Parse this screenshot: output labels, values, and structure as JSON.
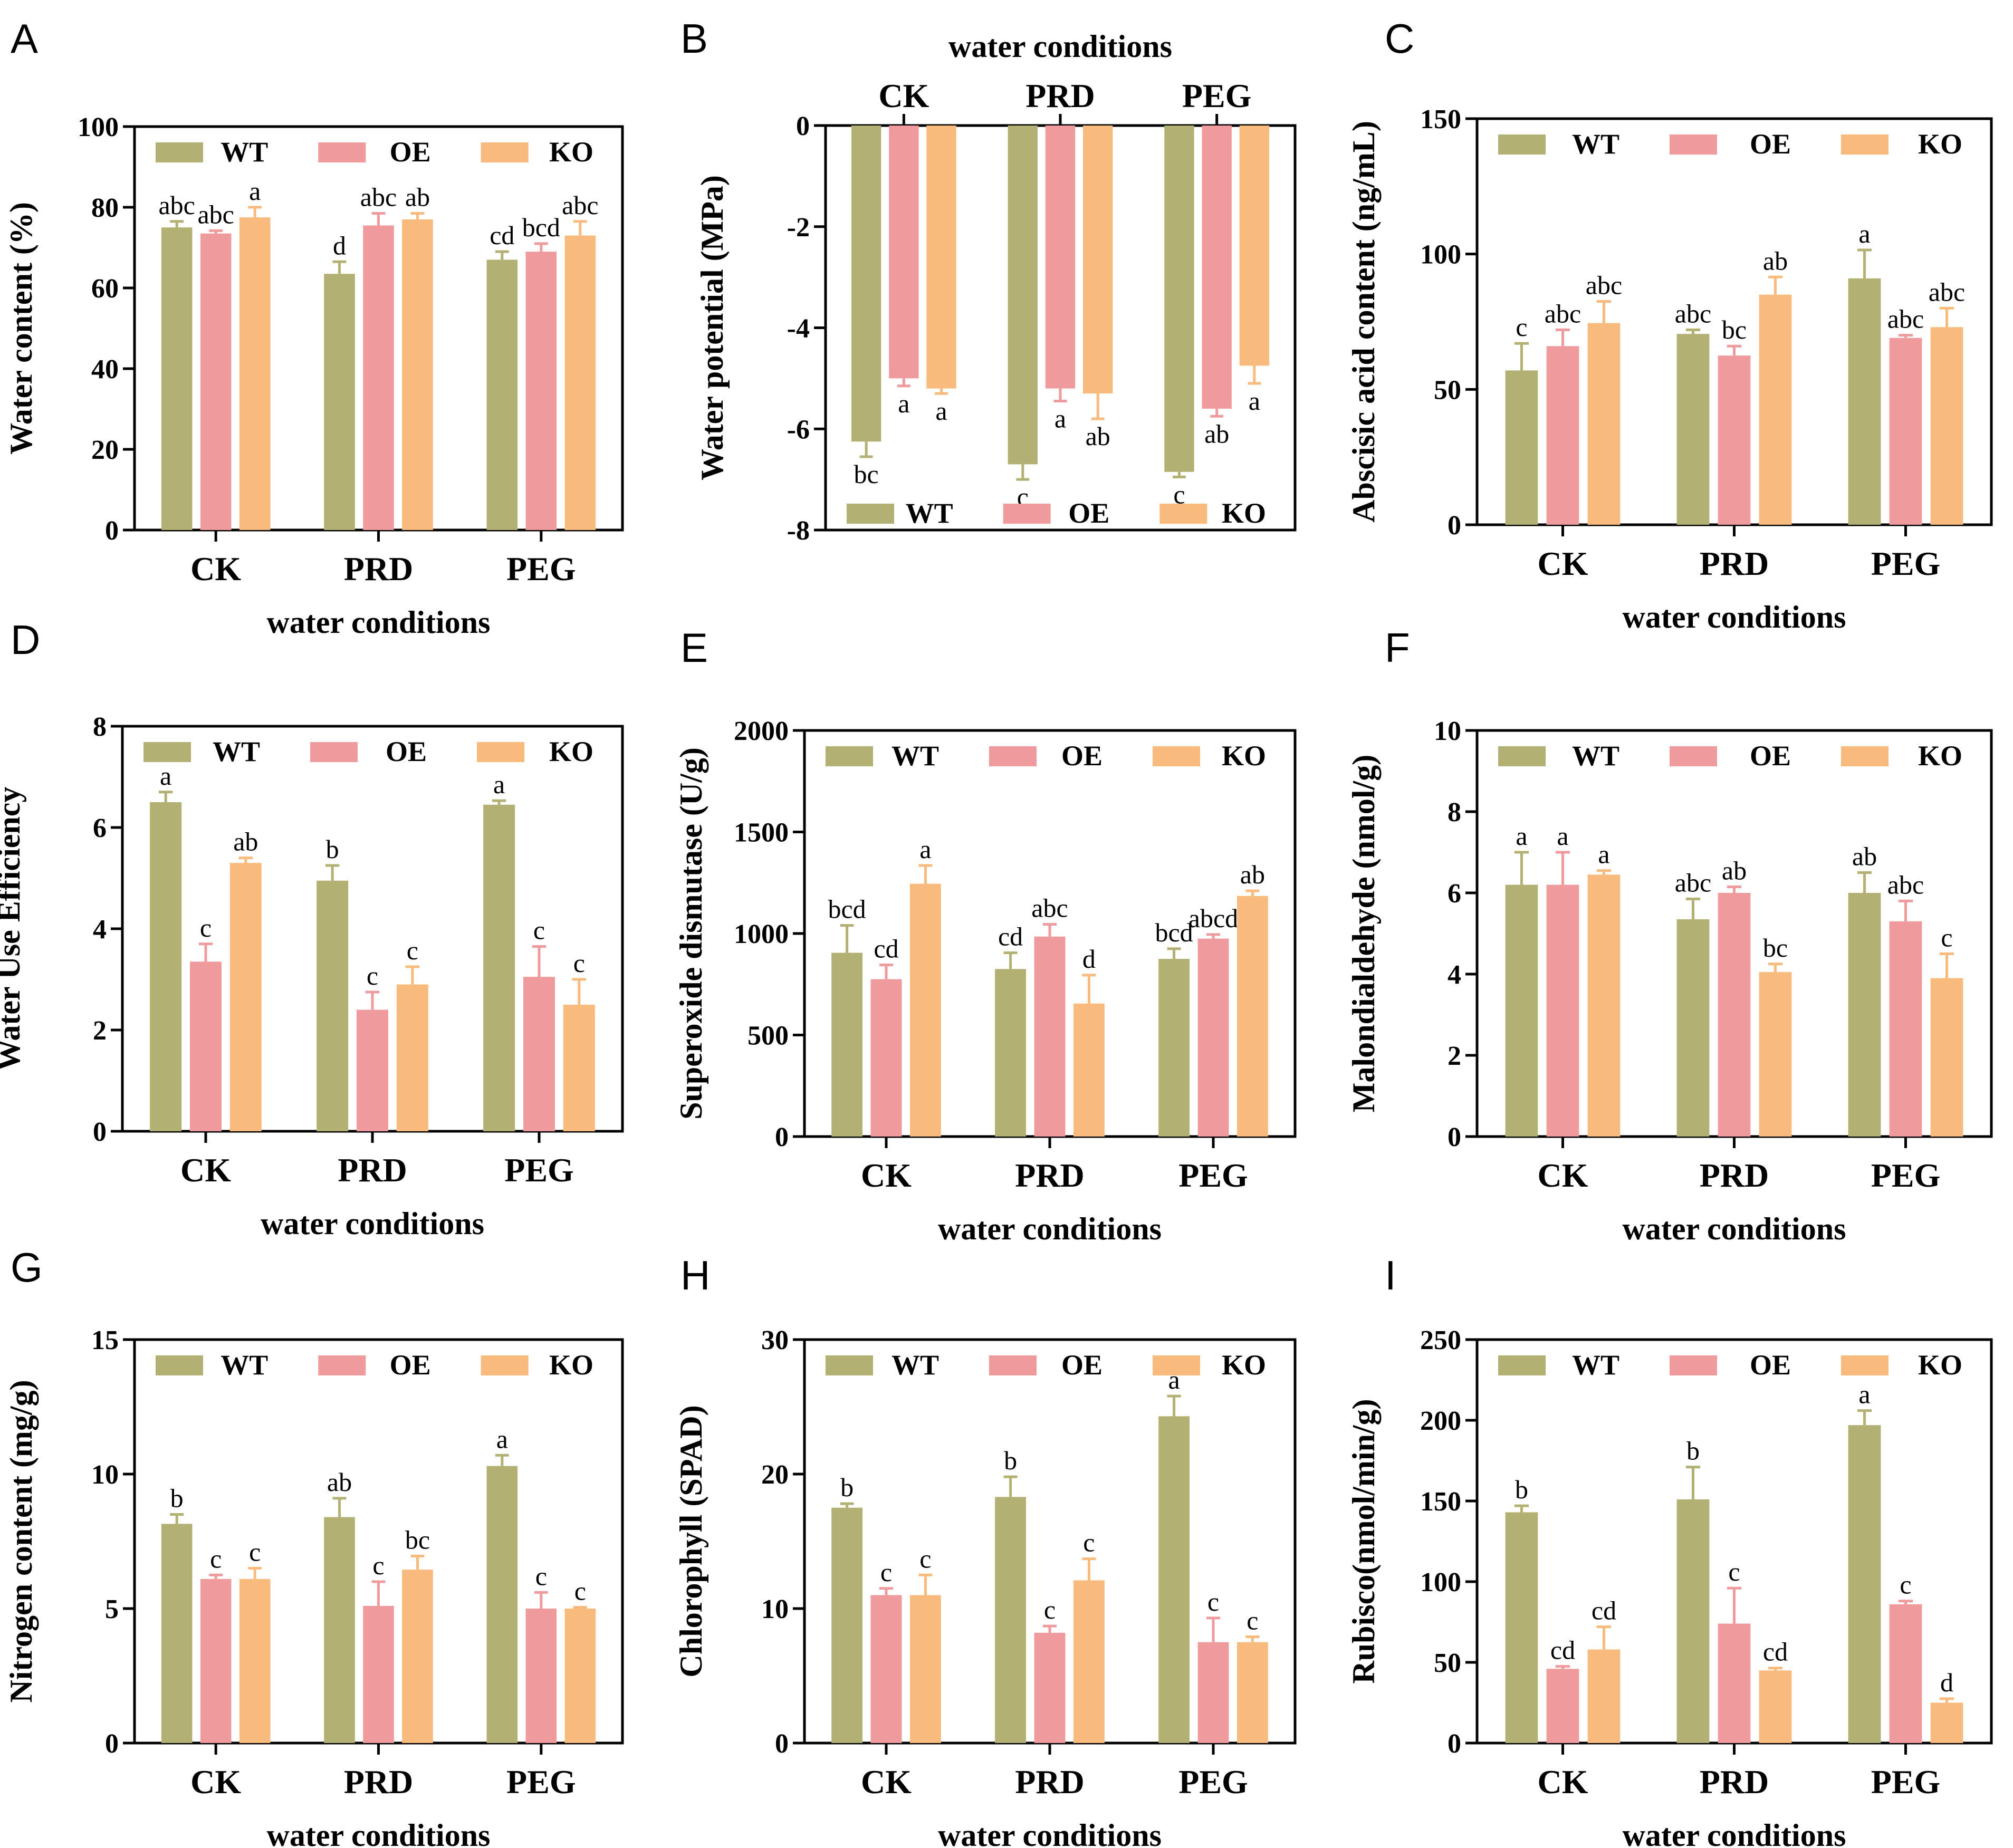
{
  "colors": {
    "WT": "#b3b073",
    "OE": "#ef9a9c",
    "KO": "#f8bb7d",
    "axis": "#000000"
  },
  "chart_data": [
    {
      "letter": "A",
      "type": "bar",
      "ylabel": "Water content (%)",
      "xlabel": "water conditions",
      "categories": [
        "CK",
        "PRD",
        "PEG"
      ],
      "ylim": [
        0,
        100
      ],
      "yticks": [
        0,
        20,
        40,
        60,
        80,
        100
      ],
      "ytick_labels": [
        "0",
        "20",
        "40",
        "60",
        "80",
        "100"
      ],
      "series": [
        {
          "name": "WT",
          "values": [
            75,
            63.5,
            67
          ],
          "errors": [
            1.5,
            3,
            2
          ],
          "labels": [
            "abc",
            "d",
            "cd"
          ]
        },
        {
          "name": "OE",
          "values": [
            73.5,
            75.5,
            69
          ],
          "errors": [
            0.7,
            3,
            2
          ],
          "labels": [
            "abc",
            "abc",
            "bcd"
          ]
        },
        {
          "name": "KO",
          "values": [
            77.5,
            77,
            73
          ],
          "errors": [
            2.5,
            1.5,
            3.5
          ],
          "labels": [
            "a",
            "ab",
            "abc"
          ]
        }
      ]
    },
    {
      "letter": "B",
      "type": "bar",
      "ylabel": "Water potential (MPa)",
      "xlabel": "water conditions",
      "categories": [
        "CK",
        "PRD",
        "PEG"
      ],
      "ylim": [
        -8,
        0
      ],
      "yticks": [
        0,
        -2,
        -4,
        -6,
        -8
      ],
      "ytick_labels": [
        "0",
        "-2",
        "-4",
        "-6",
        "-8"
      ],
      "series": [
        {
          "name": "WT",
          "values": [
            -6.25,
            -6.7,
            -6.85
          ],
          "errors": [
            0.3,
            0.3,
            0.1
          ],
          "labels": [
            "bc",
            "c",
            "c"
          ]
        },
        {
          "name": "OE",
          "values": [
            -5,
            -5.2,
            -5.6
          ],
          "errors": [
            0.15,
            0.25,
            0.15
          ],
          "labels": [
            "a",
            "a",
            "ab"
          ]
        },
        {
          "name": "KO",
          "values": [
            -5.2,
            -5.3,
            -4.75
          ],
          "errors": [
            0.1,
            0.5,
            0.35
          ],
          "labels": [
            "a",
            "ab",
            "a"
          ]
        }
      ]
    },
    {
      "letter": "C",
      "type": "bar",
      "ylabel": "Abscisic acid content (ng/mL)",
      "xlabel": "water conditions",
      "categories": [
        "CK",
        "PRD",
        "PEG"
      ],
      "ylim": [
        0,
        150
      ],
      "yticks": [
        0,
        50,
        100,
        150
      ],
      "ytick_labels": [
        "0",
        "50",
        "100",
        "150"
      ],
      "series": [
        {
          "name": "WT",
          "values": [
            57,
            70.5,
            91
          ],
          "errors": [
            10,
            1.5,
            10.5
          ],
          "labels": [
            "c",
            "abc",
            "a"
          ]
        },
        {
          "name": "OE",
          "values": [
            66,
            62.5,
            69
          ],
          "errors": [
            6,
            3.5,
            1
          ],
          "labels": [
            "abc",
            "bc",
            "abc"
          ]
        },
        {
          "name": "KO",
          "values": [
            74.5,
            85,
            73
          ],
          "errors": [
            8,
            6.5,
            7
          ],
          "labels": [
            "abc",
            "ab",
            "abc"
          ]
        }
      ]
    },
    {
      "letter": "D",
      "type": "bar",
      "ylabel": "Water Use Efficiency",
      "xlabel": "water conditions",
      "categories": [
        "CK",
        "PRD",
        "PEG"
      ],
      "ylim": [
        0,
        8
      ],
      "yticks": [
        0,
        2,
        4,
        6,
        8
      ],
      "ytick_labels": [
        "0",
        "2",
        "4",
        "6",
        "8"
      ],
      "series": [
        {
          "name": "WT",
          "values": [
            6.5,
            4.95,
            6.45
          ],
          "errors": [
            0.2,
            0.3,
            0.08
          ],
          "labels": [
            "a",
            "b",
            "a"
          ]
        },
        {
          "name": "OE",
          "values": [
            3.35,
            2.4,
            3.05
          ],
          "errors": [
            0.35,
            0.35,
            0.6
          ],
          "labels": [
            "c",
            "c",
            "c"
          ]
        },
        {
          "name": "KO",
          "values": [
            5.3,
            2.9,
            2.5
          ],
          "errors": [
            0.1,
            0.35,
            0.5
          ],
          "labels": [
            "ab",
            "c",
            "c"
          ]
        }
      ]
    },
    {
      "letter": "E",
      "type": "bar",
      "ylabel": "Superoxide dismutase (U/g)",
      "xlabel": "water conditions",
      "categories": [
        "CK",
        "PRD",
        "PEG"
      ],
      "ylim": [
        0,
        2000
      ],
      "yticks": [
        0,
        500,
        1000,
        1500,
        2000
      ],
      "ytick_labels": [
        "0",
        "500",
        "1000",
        "1500",
        "2000"
      ],
      "series": [
        {
          "name": "WT",
          "values": [
            905,
            825,
            875
          ],
          "errors": [
            135,
            80,
            50
          ],
          "labels": [
            "bcd",
            "cd",
            "bcd"
          ]
        },
        {
          "name": "OE",
          "values": [
            775,
            985,
            975
          ],
          "errors": [
            70,
            60,
            20
          ],
          "labels": [
            "cd",
            "abc",
            "abcd"
          ]
        },
        {
          "name": "KO",
          "values": [
            1245,
            655,
            1185
          ],
          "errors": [
            90,
            140,
            25
          ],
          "labels": [
            "a",
            "d",
            "ab"
          ]
        }
      ]
    },
    {
      "letter": "F",
      "type": "bar",
      "ylabel": "Malondialdehyde (nmol/g)",
      "xlabel": "water conditions",
      "categories": [
        "CK",
        "PRD",
        "PEG"
      ],
      "ylim": [
        0,
        10
      ],
      "yticks": [
        0,
        2,
        4,
        6,
        8,
        10
      ],
      "ytick_labels": [
        "0",
        "2",
        "4",
        "6",
        "8",
        "10"
      ],
      "series": [
        {
          "name": "WT",
          "values": [
            6.2,
            5.35,
            6
          ],
          "errors": [
            0.8,
            0.5,
            0.5
          ],
          "labels": [
            "a",
            "abc",
            "ab"
          ]
        },
        {
          "name": "OE",
          "values": [
            6.2,
            6,
            5.3
          ],
          "errors": [
            0.8,
            0.15,
            0.5
          ],
          "labels": [
            "a",
            "ab",
            "abc"
          ]
        },
        {
          "name": "KO",
          "values": [
            6.45,
            4.05,
            3.9
          ],
          "errors": [
            0.1,
            0.2,
            0.6
          ],
          "labels": [
            "a",
            "bc",
            "c"
          ]
        }
      ]
    },
    {
      "letter": "G",
      "type": "bar",
      "ylabel": "Nitrogen content (mg/g)",
      "xlabel": "water conditions",
      "categories": [
        "CK",
        "PRD",
        "PEG"
      ],
      "ylim": [
        0,
        15
      ],
      "yticks": [
        0,
        5,
        10,
        15
      ],
      "ytick_labels": [
        "0",
        "5",
        "10",
        "15"
      ],
      "series": [
        {
          "name": "WT",
          "values": [
            8.15,
            8.4,
            10.3
          ],
          "errors": [
            0.35,
            0.7,
            0.4
          ],
          "labels": [
            "b",
            "ab",
            "a"
          ]
        },
        {
          "name": "OE",
          "values": [
            6.1,
            5.1,
            5
          ],
          "errors": [
            0.15,
            0.9,
            0.6
          ],
          "labels": [
            "c",
            "c",
            "c"
          ]
        },
        {
          "name": "KO",
          "values": [
            6.1,
            6.45,
            5
          ],
          "errors": [
            0.4,
            0.5,
            0.05
          ],
          "labels": [
            "c",
            "bc",
            "c"
          ]
        }
      ]
    },
    {
      "letter": "H",
      "type": "bar",
      "ylabel": "Chlorophyll (SPAD)",
      "xlabel": "water conditions",
      "categories": [
        "CK",
        "PRD",
        "PEG"
      ],
      "ylim": [
        0,
        30
      ],
      "yticks": [
        0,
        10,
        20,
        30
      ],
      "ytick_labels": [
        "0",
        "10",
        "20",
        "30"
      ],
      "series": [
        {
          "name": "WT",
          "values": [
            17.5,
            18.3,
            24.3
          ],
          "errors": [
            0.3,
            1.5,
            1.5
          ],
          "labels": [
            "b",
            "b",
            "a"
          ]
        },
        {
          "name": "OE",
          "values": [
            11,
            8.2,
            7.5
          ],
          "errors": [
            0.5,
            0.5,
            1.8
          ],
          "labels": [
            "c",
            "c",
            "c"
          ]
        },
        {
          "name": "KO",
          "values": [
            11,
            12.1,
            7.5
          ],
          "errors": [
            1.5,
            1.6,
            0.4
          ],
          "labels": [
            "c",
            "c",
            "c"
          ]
        }
      ]
    },
    {
      "letter": "I",
      "type": "bar",
      "ylabel": "Rubisco(nmol/min/g)",
      "xlabel": "water conditions",
      "categories": [
        "CK",
        "PRD",
        "PEG"
      ],
      "ylim": [
        0,
        250
      ],
      "yticks": [
        0,
        50,
        100,
        150,
        200,
        250
      ],
      "ytick_labels": [
        "0",
        "50",
        "100",
        "150",
        "200",
        "250"
      ],
      "series": [
        {
          "name": "WT",
          "values": [
            143,
            151,
            197
          ],
          "errors": [
            4,
            20,
            9
          ],
          "labels": [
            "b",
            "b",
            "a"
          ]
        },
        {
          "name": "OE",
          "values": [
            46,
            74,
            86
          ],
          "errors": [
            1.5,
            22,
            2
          ],
          "labels": [
            "cd",
            "c",
            "c"
          ]
        },
        {
          "name": "KO",
          "values": [
            58,
            45,
            25
          ],
          "errors": [
            14,
            1.5,
            2.5
          ],
          "labels": [
            "cd",
            "cd",
            "d"
          ]
        }
      ]
    }
  ]
}
